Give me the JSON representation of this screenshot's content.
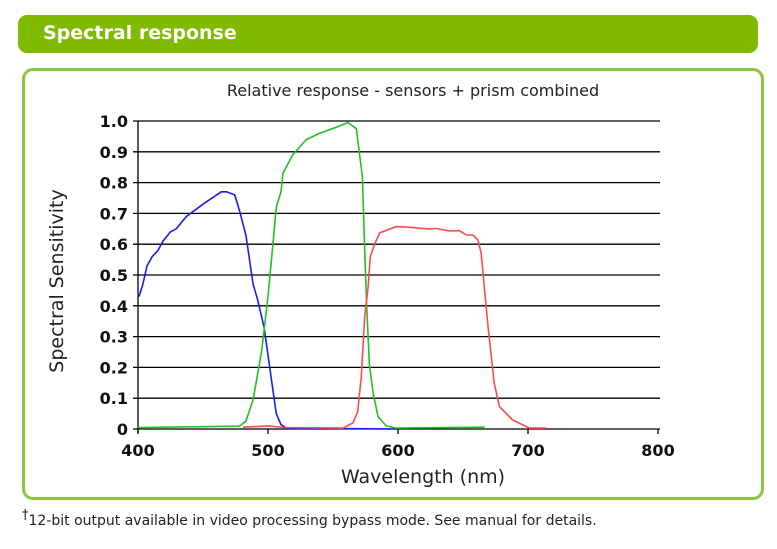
{
  "header": {
    "title": "Spectral response"
  },
  "footnote": {
    "mark": "†",
    "text": "12-bit output available in video processing bypass mode. See manual for details."
  },
  "colors": {
    "accent": "#7fba00",
    "blue": "#1a1aff",
    "green": "#1fc21f",
    "red": "#ff4a4a"
  },
  "chart_data": {
    "type": "line",
    "title": "Relative response - sensors + prism combined",
    "xlabel": "Wavelength (nm)",
    "ylabel": "Spectral Sensitivity",
    "xlim": [
      400,
      800
    ],
    "ylim": [
      0,
      1.0
    ],
    "xticks": [
      "400",
      "500",
      "600",
      "700",
      "800"
    ],
    "yticks": [
      "0",
      "0.1",
      "0.2",
      "0.3",
      "0.4",
      "0.5",
      "0.6",
      "0.7",
      "0.8",
      "0.9",
      "1.0"
    ],
    "grid": "horizontal",
    "series": [
      {
        "name": "blue",
        "color": "#1a1aff",
        "points": [
          [
            400.8,
            0.43
          ],
          [
            403.8,
            0.47
          ],
          [
            406.9,
            0.53
          ],
          [
            411,
            0.56
          ],
          [
            415.4,
            0.58
          ],
          [
            419.2,
            0.61
          ],
          [
            424.9,
            0.64
          ],
          [
            429.5,
            0.65
          ],
          [
            437.2,
            0.69
          ],
          [
            450,
            0.73
          ],
          [
            464,
            0.77
          ],
          [
            468,
            0.77
          ],
          [
            474.4,
            0.76
          ],
          [
            478,
            0.71
          ],
          [
            483,
            0.63
          ],
          [
            488.5,
            0.47
          ],
          [
            492,
            0.42
          ],
          [
            497,
            0.33
          ],
          [
            501,
            0.21
          ],
          [
            504,
            0.12
          ],
          [
            506.4,
            0.05
          ],
          [
            510,
            0.014
          ],
          [
            514,
            0.003
          ],
          [
            598.7,
            0
          ]
        ]
      },
      {
        "name": "green",
        "color": "#1fc21f",
        "points": [
          [
            400,
            0.005
          ],
          [
            478,
            0.009
          ],
          [
            483,
            0.025
          ],
          [
            488.5,
            0.095
          ],
          [
            495,
            0.25
          ],
          [
            500,
            0.43
          ],
          [
            503.8,
            0.6
          ],
          [
            506.4,
            0.72
          ],
          [
            510,
            0.77
          ],
          [
            511.5,
            0.83
          ],
          [
            519,
            0.89
          ],
          [
            529.5,
            0.94
          ],
          [
            539.7,
            0.96
          ],
          [
            552.6,
            0.98
          ],
          [
            561.5,
            0.995
          ],
          [
            568,
            0.975
          ],
          [
            570.5,
            0.89
          ],
          [
            572.6,
            0.82
          ],
          [
            574.4,
            0.58
          ],
          [
            576,
            0.39
          ],
          [
            578,
            0.21
          ],
          [
            580.8,
            0.12
          ],
          [
            584.6,
            0.04
          ],
          [
            591,
            0.01
          ],
          [
            598.7,
            0.003
          ],
          [
            666.7,
            0.006
          ]
        ]
      },
      {
        "name": "red",
        "color": "#ff4a4a",
        "points": [
          [
            480.8,
            0.006
          ],
          [
            501,
            0.01
          ],
          [
            511.5,
            0.005
          ],
          [
            557.7,
            0.003
          ],
          [
            565.4,
            0.02
          ],
          [
            569,
            0.057
          ],
          [
            571.8,
            0.17
          ],
          [
            574.4,
            0.365
          ],
          [
            577,
            0.46
          ],
          [
            578.7,
            0.56
          ],
          [
            582,
            0.6
          ],
          [
            586,
            0.637
          ],
          [
            598.7,
            0.657
          ],
          [
            611.5,
            0.654
          ],
          [
            624,
            0.649
          ],
          [
            629,
            0.651
          ],
          [
            639.7,
            0.643
          ],
          [
            647,
            0.644
          ],
          [
            652.6,
            0.63
          ],
          [
            657.7,
            0.63
          ],
          [
            661.5,
            0.613
          ],
          [
            664,
            0.57
          ],
          [
            669,
            0.343
          ],
          [
            674,
            0.149
          ],
          [
            678,
            0.073
          ],
          [
            688,
            0.03
          ],
          [
            701,
            0.003
          ],
          [
            714,
            0.003
          ]
        ]
      }
    ]
  }
}
